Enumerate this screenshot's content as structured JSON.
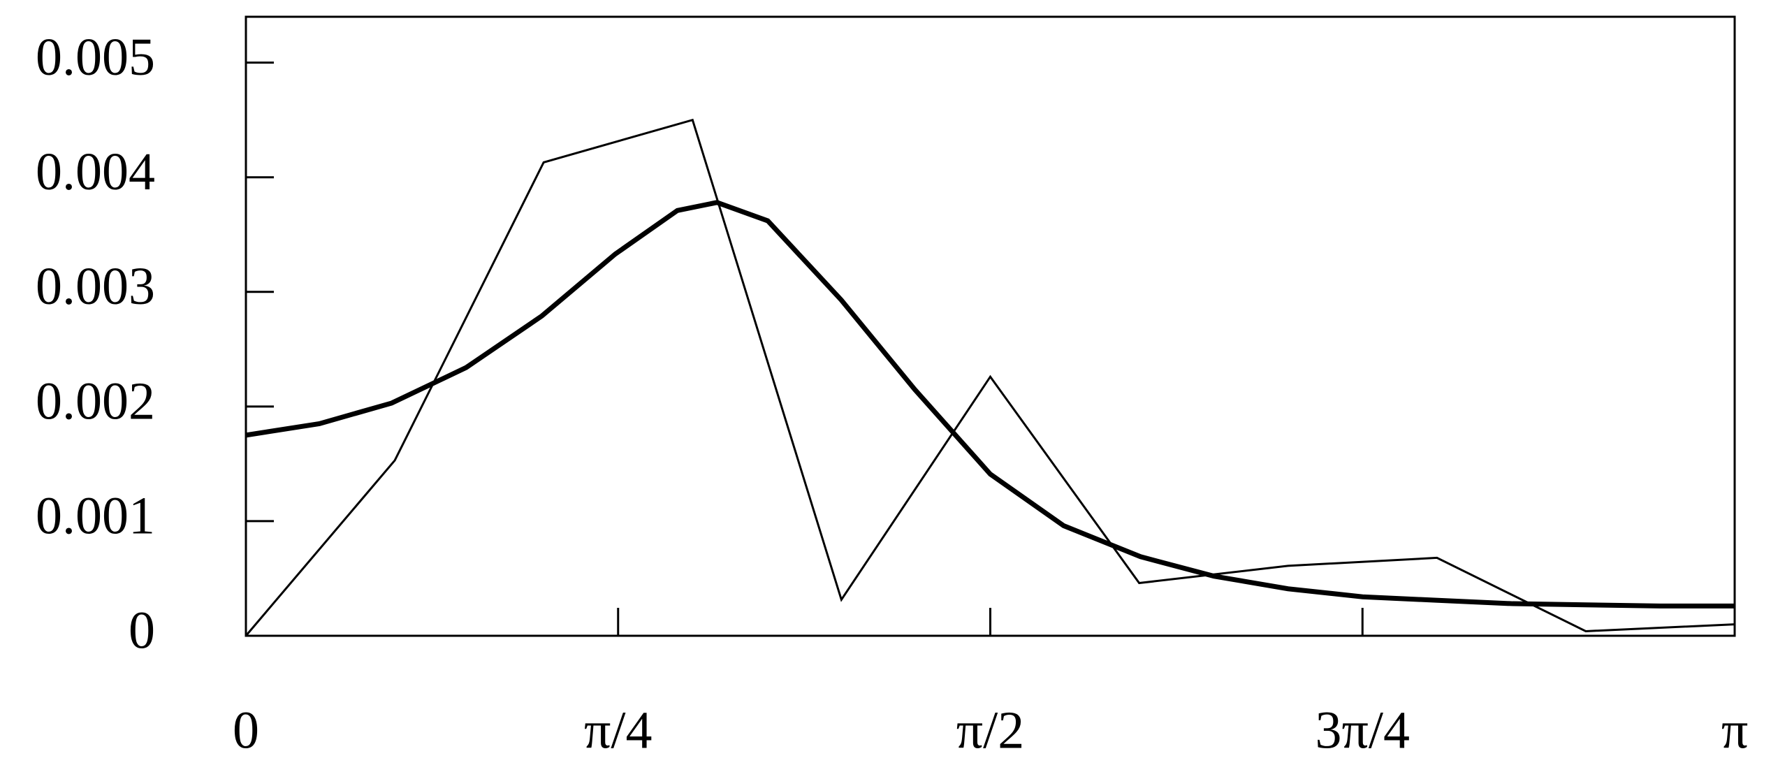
{
  "chart_data": {
    "type": "line",
    "xlim": [
      0,
      3.141592653589793
    ],
    "xticks": [
      0,
      {
        "value": 0.7853981633974483,
        "label": "π/4"
      },
      {
        "value": 1.5707963267948966,
        "label": "π/2"
      },
      {
        "value": 2.356194490192345,
        "label": "3π/4"
      },
      {
        "value": 3.141592653589793,
        "label": "π"
      }
    ],
    "ylim": [
      0,
      0.0054
    ],
    "yticks": [
      0,
      0.001,
      0.002,
      0.003,
      0.004,
      0.005
    ],
    "series": [
      {
        "color": "#000000",
        "width": 3,
        "x": [
          0,
          0.3142,
          0.6283,
          0.9425,
          1.2566,
          1.5708,
          1.885,
          2.1991,
          2.5133,
          2.8274,
          3.1416
        ],
        "values": [
          0,
          0.00153,
          0.00413,
          0.0045,
          0.000315,
          0.00226,
          0.00046,
          0.00061,
          0.00068,
          4e-05,
          0.0001
        ]
      },
      {
        "color": "#000000",
        "width": 7,
        "x": [
          0,
          0.155,
          0.3075,
          0.4648,
          0.6245,
          0.7794,
          0.9105,
          0.994,
          1.1012,
          1.2562,
          1.4111,
          1.5708,
          1.7257,
          1.8878,
          2.0427,
          2.1991,
          2.3564,
          2.5113,
          2.6734,
          2.8283,
          2.9842,
          3.1416
        ],
        "values": [
          0.00175,
          0.00185,
          0.00203,
          0.00234,
          0.00279,
          0.00333,
          0.00371,
          0.00378,
          0.00362,
          0.00293,
          0.00215,
          0.00141,
          0.00096,
          0.00069,
          0.00052,
          0.00041,
          0.00034,
          0.00031,
          0.00028,
          0.00027,
          0.00026,
          0.00026
        ]
      }
    ]
  }
}
